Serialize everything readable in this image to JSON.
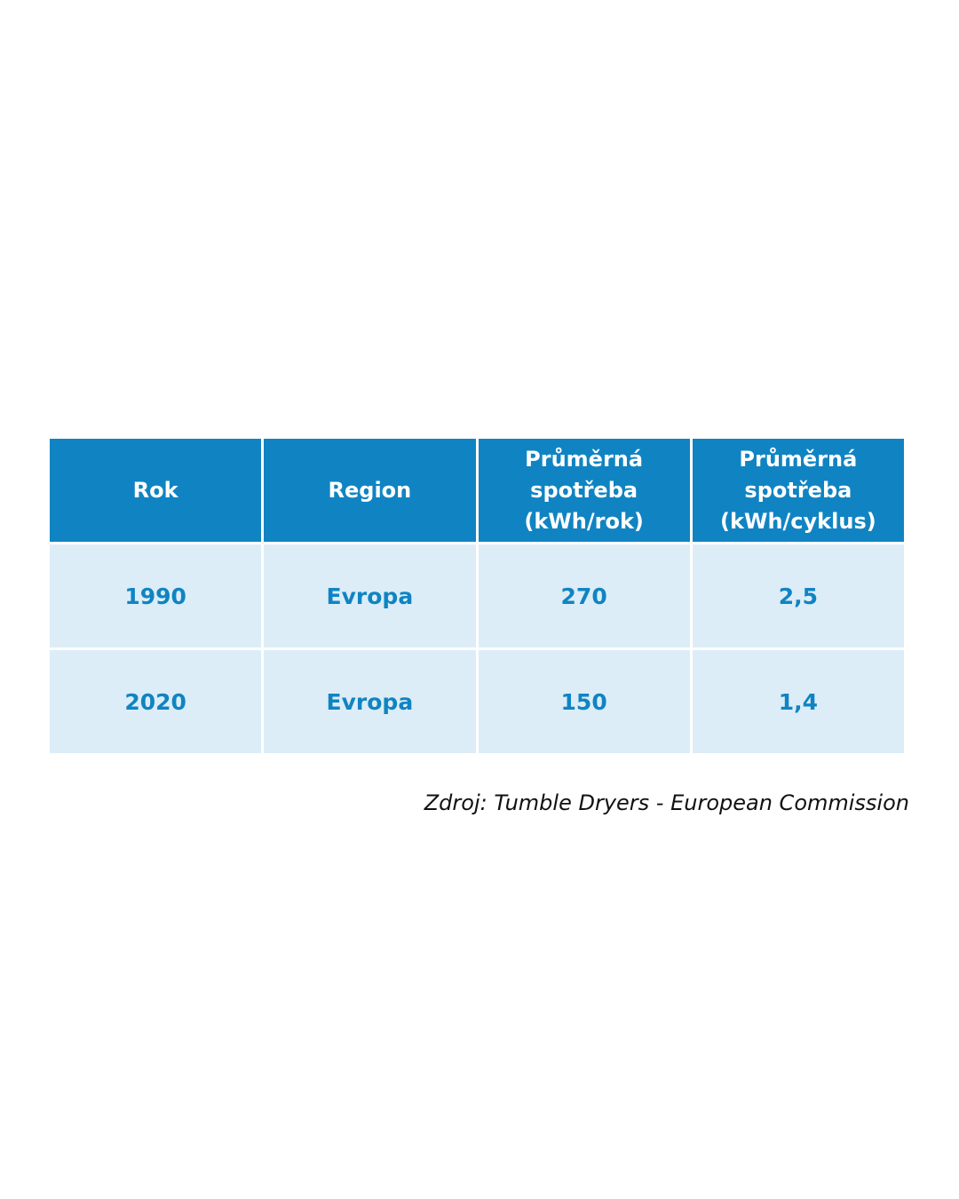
{
  "chart_data": {
    "type": "table",
    "columns": [
      {
        "lines": [
          "Rok"
        ]
      },
      {
        "lines": [
          "Region"
        ]
      },
      {
        "lines": [
          "Průměrná",
          "spotřeba",
          "(kWh/rok)"
        ]
      },
      {
        "lines": [
          "Průměrná",
          "spotřeba",
          "(kWh/cyklus)"
        ]
      }
    ],
    "rows": [
      [
        "1990",
        "Evropa",
        "270",
        "2,5"
      ],
      [
        "2020",
        "Evropa",
        "150",
        "1,4"
      ]
    ]
  },
  "source": "Zdroj: Tumble Dryers - European Commission",
  "colors": {
    "header_bg": "#1084c2",
    "cell_bg": "#dcedf8",
    "cell_text": "#1084c2"
  }
}
